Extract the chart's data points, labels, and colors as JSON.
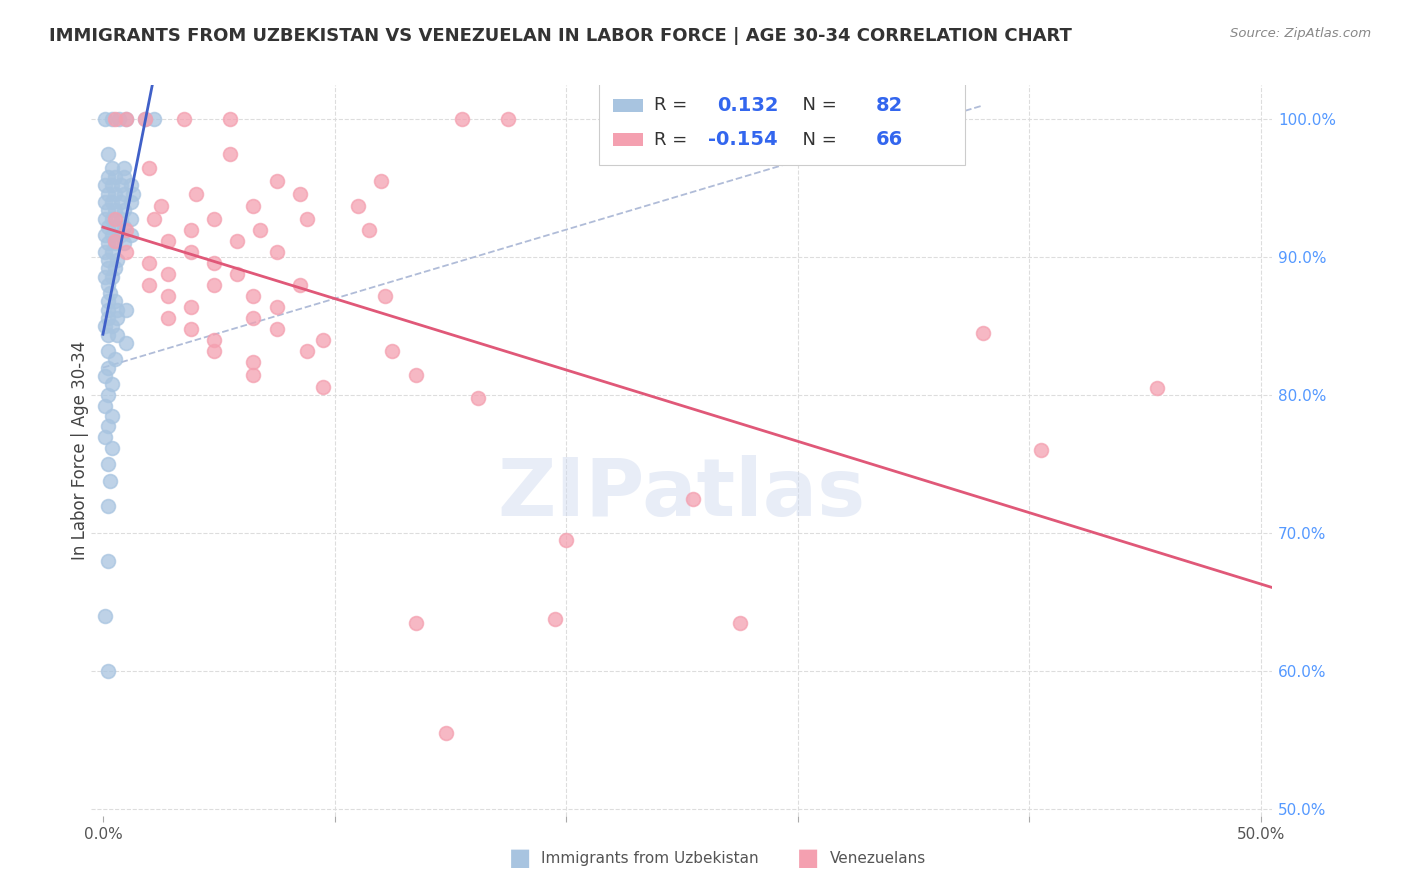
{
  "title": "IMMIGRANTS FROM UZBEKISTAN VS VENEZUELAN IN LABOR FORCE | AGE 30-34 CORRELATION CHART",
  "source": "Source: ZipAtlas.com",
  "ylabel": "In Labor Force | Age 30-34",
  "xlim": [
    -0.005,
    0.505
  ],
  "ylim": [
    0.495,
    1.025
  ],
  "xticks": [
    0.0,
    0.1,
    0.2,
    0.3,
    0.4,
    0.5
  ],
  "xticklabels": [
    "0.0%",
    "",
    "",
    "",
    "",
    "50.0%"
  ],
  "yticks_right": [
    0.5,
    0.6,
    0.7,
    0.8,
    0.9,
    1.0
  ],
  "yticklabels_right": [
    "50.0%",
    "60.0%",
    "70.0%",
    "80.0%",
    "90.0%",
    "100.0%"
  ],
  "legend_r_uzbek": "0.132",
  "legend_n_uzbek": "82",
  "legend_r_venezu": "-0.154",
  "legend_n_venezu": "66",
  "uzbek_color": "#a8c4e0",
  "venezu_color": "#f4a0b0",
  "uzbek_line_color": "#4060c8",
  "venezu_line_color": "#e05878",
  "dashed_line_color": "#b0bcd8",
  "watermark": "ZIPatlas",
  "uzbek_points": [
    [
      0.001,
      1.0
    ],
    [
      0.004,
      1.0
    ],
    [
      0.007,
      1.0
    ],
    [
      0.01,
      1.0
    ],
    [
      0.018,
      1.0
    ],
    [
      0.022,
      1.0
    ],
    [
      0.002,
      0.975
    ],
    [
      0.004,
      0.965
    ],
    [
      0.009,
      0.965
    ],
    [
      0.002,
      0.958
    ],
    [
      0.005,
      0.958
    ],
    [
      0.009,
      0.958
    ],
    [
      0.001,
      0.952
    ],
    [
      0.004,
      0.952
    ],
    [
      0.008,
      0.952
    ],
    [
      0.012,
      0.952
    ],
    [
      0.002,
      0.946
    ],
    [
      0.005,
      0.946
    ],
    [
      0.009,
      0.946
    ],
    [
      0.013,
      0.946
    ],
    [
      0.001,
      0.94
    ],
    [
      0.004,
      0.94
    ],
    [
      0.008,
      0.94
    ],
    [
      0.012,
      0.94
    ],
    [
      0.002,
      0.934
    ],
    [
      0.005,
      0.934
    ],
    [
      0.009,
      0.934
    ],
    [
      0.001,
      0.928
    ],
    [
      0.004,
      0.928
    ],
    [
      0.008,
      0.928
    ],
    [
      0.012,
      0.928
    ],
    [
      0.002,
      0.922
    ],
    [
      0.005,
      0.922
    ],
    [
      0.009,
      0.922
    ],
    [
      0.001,
      0.916
    ],
    [
      0.004,
      0.916
    ],
    [
      0.008,
      0.916
    ],
    [
      0.012,
      0.916
    ],
    [
      0.002,
      0.91
    ],
    [
      0.005,
      0.91
    ],
    [
      0.009,
      0.91
    ],
    [
      0.001,
      0.904
    ],
    [
      0.004,
      0.904
    ],
    [
      0.002,
      0.898
    ],
    [
      0.006,
      0.898
    ],
    [
      0.002,
      0.892
    ],
    [
      0.005,
      0.892
    ],
    [
      0.001,
      0.886
    ],
    [
      0.004,
      0.886
    ],
    [
      0.002,
      0.88
    ],
    [
      0.003,
      0.874
    ],
    [
      0.002,
      0.868
    ],
    [
      0.005,
      0.868
    ],
    [
      0.002,
      0.862
    ],
    [
      0.006,
      0.862
    ],
    [
      0.01,
      0.862
    ],
    [
      0.002,
      0.856
    ],
    [
      0.006,
      0.856
    ],
    [
      0.001,
      0.85
    ],
    [
      0.004,
      0.85
    ],
    [
      0.002,
      0.844
    ],
    [
      0.006,
      0.844
    ],
    [
      0.01,
      0.838
    ],
    [
      0.002,
      0.832
    ],
    [
      0.005,
      0.826
    ],
    [
      0.002,
      0.82
    ],
    [
      0.001,
      0.814
    ],
    [
      0.004,
      0.808
    ],
    [
      0.002,
      0.8
    ],
    [
      0.001,
      0.792
    ],
    [
      0.004,
      0.785
    ],
    [
      0.002,
      0.778
    ],
    [
      0.001,
      0.77
    ],
    [
      0.004,
      0.762
    ],
    [
      0.002,
      0.75
    ],
    [
      0.003,
      0.738
    ],
    [
      0.002,
      0.72
    ],
    [
      0.002,
      0.68
    ],
    [
      0.001,
      0.64
    ],
    [
      0.002,
      0.6
    ]
  ],
  "venezu_points": [
    [
      0.005,
      1.0
    ],
    [
      0.01,
      1.0
    ],
    [
      0.018,
      1.0
    ],
    [
      0.035,
      1.0
    ],
    [
      0.055,
      1.0
    ],
    [
      0.155,
      1.0
    ],
    [
      0.175,
      1.0
    ],
    [
      0.055,
      0.975
    ],
    [
      0.02,
      0.965
    ],
    [
      0.075,
      0.955
    ],
    [
      0.12,
      0.955
    ],
    [
      0.04,
      0.946
    ],
    [
      0.085,
      0.946
    ],
    [
      0.025,
      0.937
    ],
    [
      0.065,
      0.937
    ],
    [
      0.11,
      0.937
    ],
    [
      0.005,
      0.928
    ],
    [
      0.022,
      0.928
    ],
    [
      0.048,
      0.928
    ],
    [
      0.088,
      0.928
    ],
    [
      0.01,
      0.92
    ],
    [
      0.038,
      0.92
    ],
    [
      0.068,
      0.92
    ],
    [
      0.115,
      0.92
    ],
    [
      0.005,
      0.912
    ],
    [
      0.028,
      0.912
    ],
    [
      0.058,
      0.912
    ],
    [
      0.01,
      0.904
    ],
    [
      0.038,
      0.904
    ],
    [
      0.075,
      0.904
    ],
    [
      0.02,
      0.896
    ],
    [
      0.048,
      0.896
    ],
    [
      0.028,
      0.888
    ],
    [
      0.058,
      0.888
    ],
    [
      0.02,
      0.88
    ],
    [
      0.048,
      0.88
    ],
    [
      0.085,
      0.88
    ],
    [
      0.028,
      0.872
    ],
    [
      0.065,
      0.872
    ],
    [
      0.122,
      0.872
    ],
    [
      0.038,
      0.864
    ],
    [
      0.075,
      0.864
    ],
    [
      0.028,
      0.856
    ],
    [
      0.065,
      0.856
    ],
    [
      0.038,
      0.848
    ],
    [
      0.075,
      0.848
    ],
    [
      0.048,
      0.84
    ],
    [
      0.095,
      0.84
    ],
    [
      0.048,
      0.832
    ],
    [
      0.088,
      0.832
    ],
    [
      0.125,
      0.832
    ],
    [
      0.065,
      0.824
    ],
    [
      0.065,
      0.815
    ],
    [
      0.135,
      0.815
    ],
    [
      0.095,
      0.806
    ],
    [
      0.162,
      0.798
    ],
    [
      0.38,
      0.845
    ],
    [
      0.455,
      0.805
    ],
    [
      0.255,
      0.725
    ],
    [
      0.405,
      0.76
    ],
    [
      0.275,
      0.635
    ],
    [
      0.2,
      0.695
    ],
    [
      0.135,
      0.635
    ],
    [
      0.195,
      0.638
    ],
    [
      0.148,
      0.555
    ]
  ]
}
